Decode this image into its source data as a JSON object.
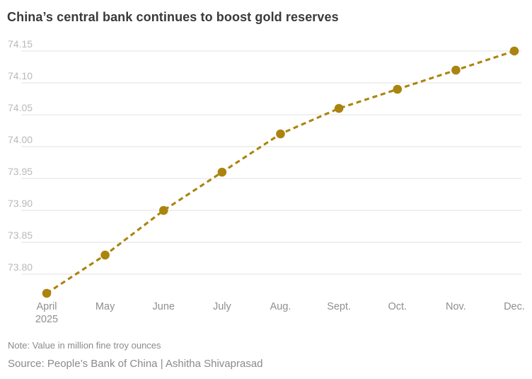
{
  "title": "China’s central bank continues to boost gold reserves",
  "note": "Note: Value in million fine troy ounces",
  "source": "Source: People’s Bank of China | Ashitha Shivaprasad",
  "colors": {
    "line": "#ab840e",
    "marker": "#ab840e",
    "grid": "#e0e0e0",
    "y_tick_label": "#b9b9b9",
    "x_tick_label": "#8f8f8f",
    "title_text": "#3a3a3a",
    "caption_text": "#8a8a8a",
    "background": "#ffffff"
  },
  "chart_data": {
    "type": "line",
    "line_style": "dashed",
    "markers": "filled-circle",
    "title": "China’s central bank continues to boost gold reserves",
    "xlabel": "",
    "ylabel": "",
    "unit_note": "million fine troy ounces",
    "x_labels": [
      [
        "April",
        "2025"
      ],
      [
        "May"
      ],
      [
        "June"
      ],
      [
        "July"
      ],
      [
        "Aug."
      ],
      [
        "Sept."
      ],
      [
        "Oct."
      ],
      [
        "Nov."
      ],
      [
        "Dec."
      ]
    ],
    "values": [
      73.77,
      73.83,
      73.9,
      73.96,
      74.02,
      74.06,
      74.09,
      74.12,
      74.15
    ],
    "y_tick_labels": [
      "74.15",
      "74.10",
      "74.05",
      "74.00",
      "73.95",
      "73.90",
      "73.85",
      "73.80"
    ],
    "y_tick_values": [
      74.15,
      74.1,
      74.05,
      74.0,
      73.95,
      73.9,
      73.85,
      73.8
    ],
    "ylim": [
      73.755,
      74.155
    ],
    "grid": "horizontal-only",
    "legend": false
  }
}
